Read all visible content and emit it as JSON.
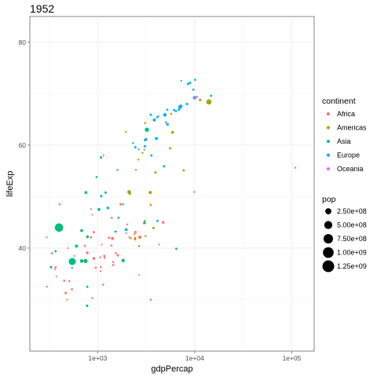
{
  "chart_data": {
    "type": "scatter",
    "title": "1952",
    "xlabel": "gdpPercap",
    "ylabel": "lifeExp",
    "x_scale": "log10",
    "xlim": [
      200,
      170000
    ],
    "ylim": [
      20,
      85
    ],
    "x_ticks": [
      {
        "value": 1000,
        "label": "1e+03"
      },
      {
        "value": 10000,
        "label": "1e+04"
      },
      {
        "value": 100000,
        "label": "1e+05"
      }
    ],
    "y_ticks": [
      {
        "value": 40,
        "label": "40"
      },
      {
        "value": 60,
        "label": "60"
      },
      {
        "value": 80,
        "label": "80"
      }
    ],
    "grid": true,
    "legend": {
      "placement": "right",
      "color": {
        "title": "continent",
        "entries": [
          {
            "label": "Africa",
            "color": "#F8766D"
          },
          {
            "label": "Americas",
            "color": "#A3A500"
          },
          {
            "label": "Asia",
            "color": "#00BF7D"
          },
          {
            "label": "Europe",
            "color": "#00B0F6"
          },
          {
            "label": "Oceania",
            "color": "#E76BF3"
          }
        ]
      },
      "size": {
        "title": "pop",
        "entries": [
          {
            "value": 250000000,
            "label": "2.50e+08"
          },
          {
            "value": 500000000,
            "label": "5.00e+08"
          },
          {
            "value": 750000000,
            "label": "7.50e+08"
          },
          {
            "value": 1000000000,
            "label": "1.00e+09"
          },
          {
            "value": 1250000000,
            "label": "1.25e+09"
          }
        ]
      }
    },
    "series": [
      {
        "name": "Africa",
        "points": [
          [
            2449,
            43.1
          ],
          [
            3521,
            30.0
          ],
          [
            1063,
            38.2
          ],
          [
            851,
            47.6
          ],
          [
            543,
            32.0
          ],
          [
            339,
            39.0
          ],
          [
            1173,
            38.5
          ],
          [
            1071,
            35.5
          ],
          [
            1179,
            38.1
          ],
          [
            1103,
            40.7
          ],
          [
            781,
            39.1
          ],
          [
            2126,
            42.1
          ],
          [
            1389,
            40.5
          ],
          [
            2669,
            34.8
          ],
          [
            1419,
            41.9
          ],
          [
            376,
            34.5
          ],
          [
            362,
            35.9
          ],
          [
            914,
            38.0
          ],
          [
            4293,
            40.7
          ],
          [
            485,
            30.0
          ],
          [
            912,
            43.1
          ],
          [
            511,
            33.6
          ],
          [
            300,
            32.5
          ],
          [
            854,
            42.1
          ],
          [
            299,
            42.1
          ],
          [
            575,
            38.5
          ],
          [
            2388,
            42.7
          ],
          [
            1443,
            36.7
          ],
          [
            369,
            36.3
          ],
          [
            453,
            33.7
          ],
          [
            744,
            40.5
          ],
          [
            1967,
            42.9
          ],
          [
            469,
            31.3
          ],
          [
            2423,
            41.7
          ],
          [
            761,
            37.4
          ],
          [
            1077,
            36.3
          ],
          [
            2718,
            42.1
          ],
          [
            493,
            40.0
          ],
          [
            880,
            46.5
          ],
          [
            1450,
            37.3
          ],
          [
            880,
            30.3
          ],
          [
            1136,
            32.9
          ],
          [
            4725,
            45.0
          ],
          [
            1616,
            38.6
          ],
          [
            1148,
            58.0
          ],
          [
            1727,
            48.5
          ],
          [
            2014,
            44.6
          ],
          [
            1540,
            39.0
          ],
          [
            1311,
            42.0
          ],
          [
            734,
            40.4
          ],
          [
            406,
            48.5
          ],
          [
            956,
            36.2
          ]
        ]
      },
      {
        "name": "Americas",
        "points": [
          [
            5911,
            62.5
          ],
          [
            2677,
            40.4
          ],
          [
            2109,
            50.9
          ],
          [
            11367,
            68.8
          ],
          [
            3940,
            54.7
          ],
          [
            2144,
            50.6
          ],
          [
            2627,
            57.2
          ],
          [
            5587,
            59.4
          ],
          [
            1398,
            45.9
          ],
          [
            3522,
            48.4
          ],
          [
            3048,
            45.3
          ],
          [
            2428,
            42.0
          ],
          [
            1840,
            37.6
          ],
          [
            2195,
            41.9
          ],
          [
            2898,
            58.5
          ],
          [
            3478,
            50.8
          ],
          [
            3112,
            42.3
          ],
          [
            2480,
            55.2
          ],
          [
            1952,
            62.6
          ],
          [
            3759,
            43.9
          ],
          [
            3082,
            64.3
          ],
          [
            3024,
            59.1
          ],
          [
            13990,
            68.4
          ],
          [
            5717,
            66.1
          ],
          [
            7690,
            55.1
          ]
        ]
      },
      {
        "name": "Asia",
        "points": [
          [
            779,
            28.8
          ],
          [
            9867,
            50.9
          ],
          [
            684,
            37.5
          ],
          [
            368,
            39.4
          ],
          [
            400,
            44.0
          ],
          [
            3054,
            60.96
          ],
          [
            547,
            37.4
          ],
          [
            750,
            37.5
          ],
          [
            3036,
            44.9
          ],
          [
            4130,
            45.3
          ],
          [
            4087,
            65.4
          ],
          [
            3217,
            63.0
          ],
          [
            1547,
            43.2
          ],
          [
            1088,
            50.1
          ],
          [
            1031,
            47.5
          ],
          [
            108382,
            55.6
          ],
          [
            4835,
            55.9
          ],
          [
            1831,
            48.5
          ],
          [
            786,
            42.2
          ],
          [
            331,
            36.3
          ],
          [
            545,
            36.2
          ],
          [
            1829,
            37.6
          ],
          [
            684,
            43.4
          ],
          [
            1272,
            47.8
          ],
          [
            6459,
            39.9
          ],
          [
            2315,
            60.4
          ],
          [
            1083,
            57.6
          ],
          [
            1643,
            45.9
          ],
          [
            1206,
            50.8
          ],
          [
            757,
            50.8
          ],
          [
            605,
            40.4
          ],
          [
            1516,
            43.2
          ],
          [
            782,
            32.5
          ]
        ]
      },
      {
        "name": "Europe",
        "points": [
          [
            1601,
            55.2
          ],
          [
            6137,
            66.8
          ],
          [
            8343,
            68.0
          ],
          [
            973,
            53.8
          ],
          [
            2444,
            59.6
          ],
          [
            3119,
            61.2
          ],
          [
            6876,
            66.9
          ],
          [
            9692,
            70.8
          ],
          [
            6425,
            66.6
          ],
          [
            7030,
            67.4
          ],
          [
            7144,
            67.5
          ],
          [
            3531,
            65.9
          ],
          [
            5264,
            64.0
          ],
          [
            7268,
            72.5
          ],
          [
            5211,
            66.9
          ],
          [
            4931,
            65.9
          ],
          [
            2648,
            59.2
          ],
          [
            8942,
            72.1
          ],
          [
            10095,
            72.7
          ],
          [
            4029,
            61.3
          ],
          [
            3068,
            59.8
          ],
          [
            3145,
            61.1
          ],
          [
            3581,
            57.996
          ],
          [
            5075,
            64.4
          ],
          [
            4215,
            65.6
          ],
          [
            3834,
            64.9
          ],
          [
            8528,
            71.9
          ],
          [
            14734,
            69.6
          ],
          [
            1969,
            43.6
          ],
          [
            9980,
            69.2
          ]
        ]
      },
      {
        "name": "Oceania",
        "points": [
          [
            10040,
            69.1
          ],
          [
            10557,
            69.4
          ]
        ]
      }
    ],
    "pop_sizes": {
      "Africa": [
        9279525,
        4232095,
        1738315,
        442308,
        4469979,
        2445618,
        5009067,
        1291695,
        2682462,
        153936,
        14100005,
        854885,
        2977019,
        63149,
        22223309,
        216964,
        1438760,
        20860941,
        420702,
        284320,
        5581001,
        2664249,
        580653,
        6464046,
        748747,
        863308,
        1019729,
        4762912,
        2917802,
        3838168,
        1022556,
        516556,
        9939217,
        6446316,
        2027879,
        3379468,
        33119096,
        257700,
        60011,
        2755589,
        2143249,
        2526994,
        14264935,
        8504667,
        290243,
        8322925,
        1219113,
        3647735,
        5824797,
        1261091,
        2672000,
        3080907
      ],
      "Americas": [
        17876956,
        2883315,
        56602560,
        14785584,
        6377619,
        12350771,
        926317,
        6007797,
        2491346,
        3548753,
        2042865,
        3146381,
        3201488,
        1517453,
        1426095,
        30144317,
        1165790,
        940080,
        1555876,
        8025700,
        2227000,
        662850,
        157553000,
        2252965,
        5439568
      ],
      "Asia": [
        8425333,
        120447,
        46886859,
        4693836,
        556263527,
        2125900,
        372000000,
        82052000,
        17272000,
        5441766,
        1620914,
        86459025,
        607914,
        8865488,
        20947571,
        160000,
        6748378,
        800663,
        20092996,
        9182536,
        507833,
        41346560,
        22438691,
        16630000,
        4005677,
        1127000,
        7982342,
        3661549,
        8550362,
        21289402,
        26246839,
        1030585,
        4963829
      ],
      "Europe": [
        1282697,
        6927772,
        8730405,
        2791000,
        7274900,
        3882229,
        9125183,
        4090500,
        4090500,
        42459667,
        69145952,
        7733250,
        9504000,
        147962,
        2952156,
        47666000,
        413834,
        10381988,
        3327728,
        25730551,
        8526050,
        16630000,
        6860147,
        3558137,
        1489518,
        28549870,
        7124673,
        4815000,
        22235677,
        50430000
      ],
      "Oceania": [
        8691212,
        1994794
      ]
    }
  }
}
